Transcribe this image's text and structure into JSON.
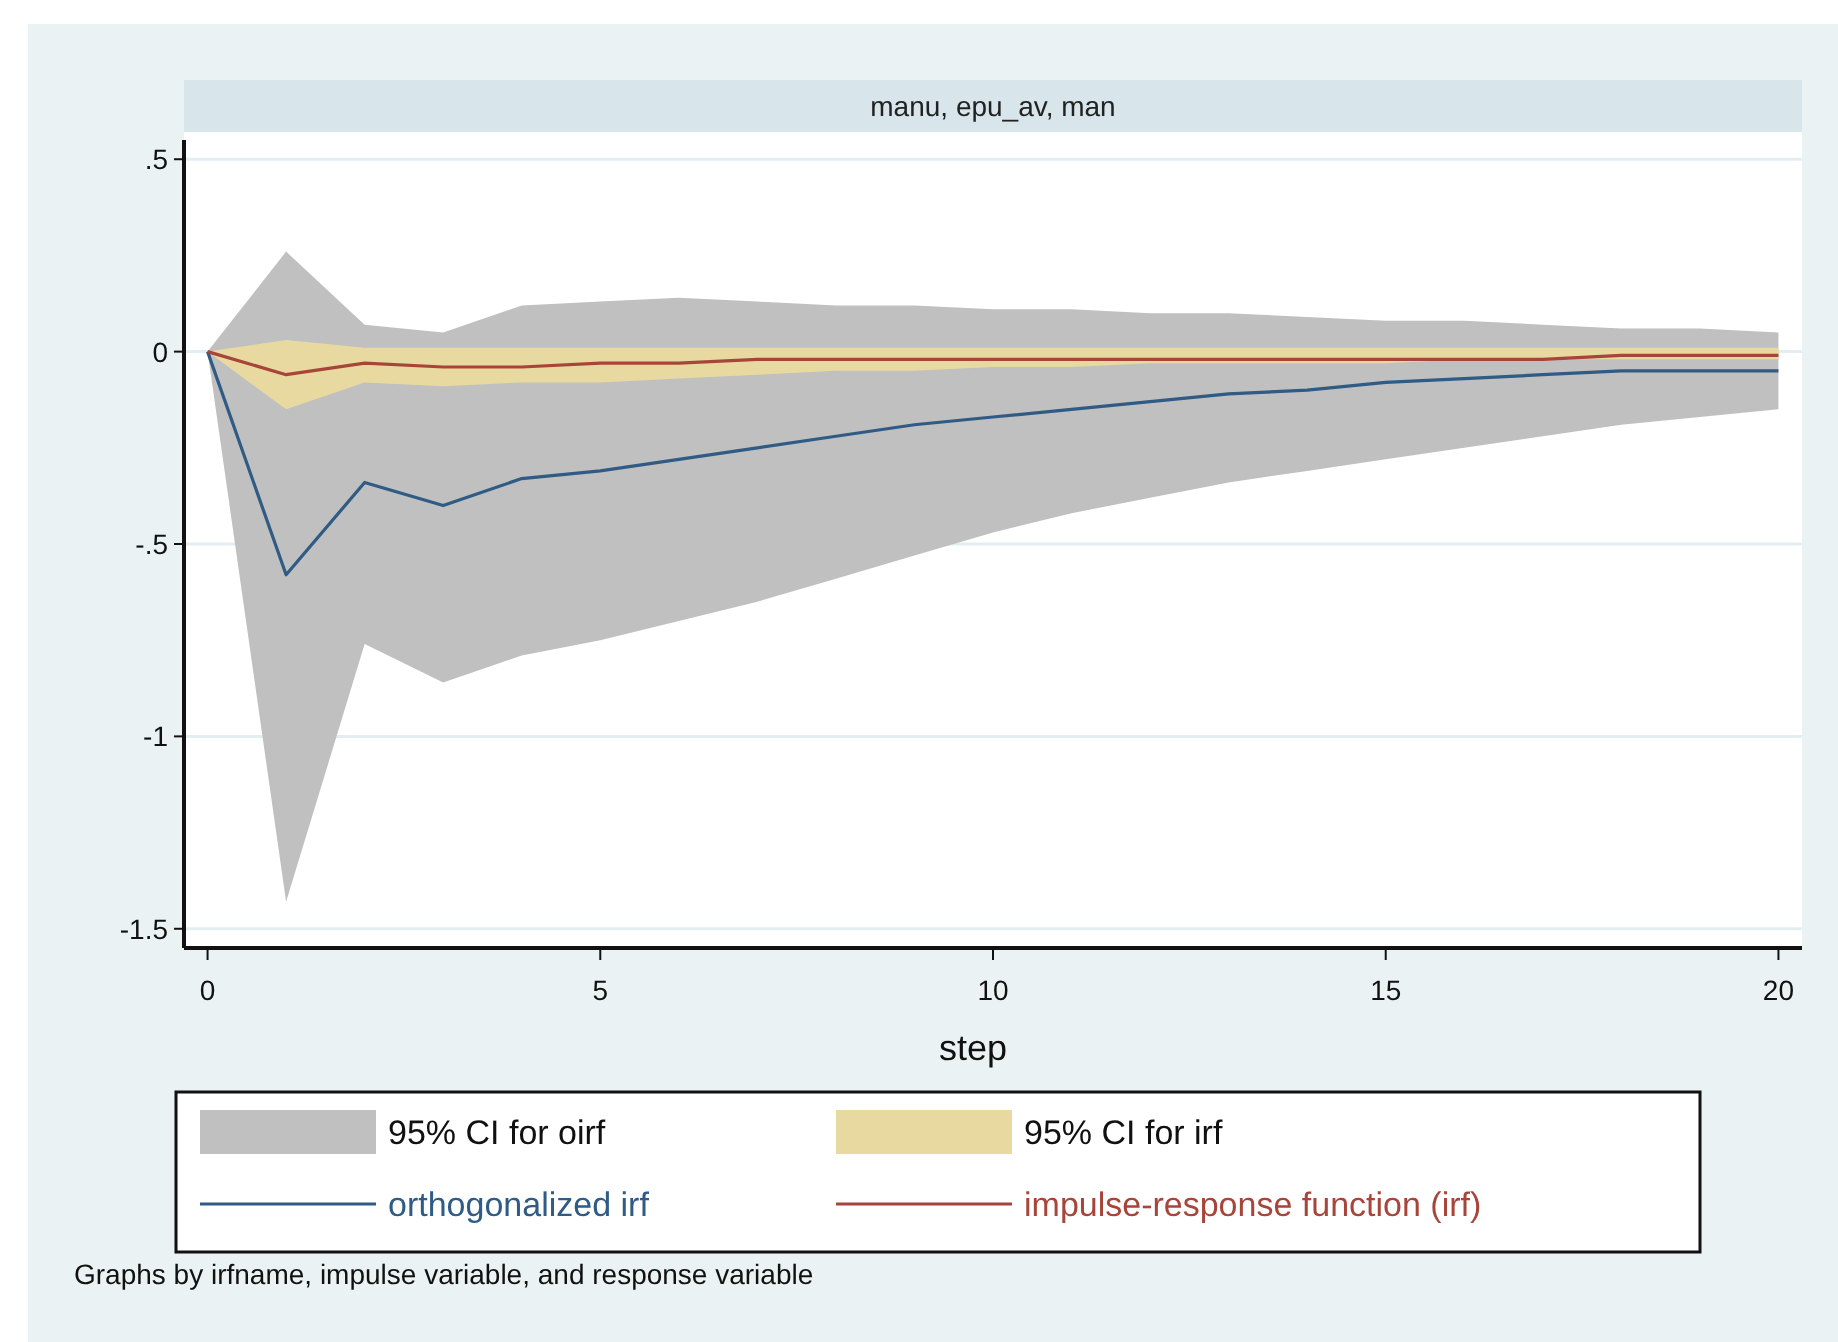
{
  "chart_data": {
    "type": "line",
    "title": "manu, epu_av, man",
    "xlabel": "step",
    "x": [
      0,
      1,
      2,
      3,
      4,
      5,
      6,
      7,
      8,
      9,
      10,
      11,
      12,
      13,
      14,
      15,
      16,
      17,
      18,
      19,
      20
    ],
    "series": [
      {
        "name": "orthogonalized irf",
        "color": "#2f5b84",
        "values": [
          0,
          -0.58,
          -0.34,
          -0.4,
          -0.33,
          -0.31,
          -0.28,
          -0.25,
          -0.22,
          -0.19,
          -0.17,
          -0.15,
          -0.13,
          -0.11,
          -0.1,
          -0.08,
          -0.07,
          -0.06,
          -0.05,
          -0.05,
          -0.05
        ],
        "lower": [
          0,
          -1.43,
          -0.76,
          -0.86,
          -0.79,
          -0.75,
          -0.7,
          -0.65,
          -0.59,
          -0.53,
          -0.47,
          -0.42,
          -0.38,
          -0.34,
          -0.31,
          -0.28,
          -0.25,
          -0.22,
          -0.19,
          -0.17,
          -0.15
        ],
        "upper": [
          0,
          0.26,
          0.07,
          0.05,
          0.12,
          0.13,
          0.14,
          0.13,
          0.12,
          0.12,
          0.11,
          0.11,
          0.1,
          0.1,
          0.09,
          0.08,
          0.08,
          0.07,
          0.06,
          0.06,
          0.05
        ]
      },
      {
        "name": "impulse-response function (irf)",
        "color": "#a8453a",
        "values": [
          0,
          -0.06,
          -0.03,
          -0.04,
          -0.04,
          -0.03,
          -0.03,
          -0.02,
          -0.02,
          -0.02,
          -0.02,
          -0.02,
          -0.02,
          -0.02,
          -0.02,
          -0.02,
          -0.02,
          -0.02,
          -0.01,
          -0.01,
          -0.01
        ],
        "lower": [
          0,
          -0.15,
          -0.08,
          -0.09,
          -0.08,
          -0.08,
          -0.07,
          -0.06,
          -0.05,
          -0.05,
          -0.04,
          -0.04,
          -0.03,
          -0.03,
          -0.03,
          -0.03,
          -0.02,
          -0.02,
          -0.02,
          -0.02,
          -0.02
        ],
        "upper": [
          0,
          0.03,
          0.01,
          0.01,
          0.01,
          0.01,
          0.01,
          0.01,
          0.01,
          0.01,
          0.01,
          0.01,
          0.01,
          0.01,
          0.01,
          0.01,
          0.01,
          0.01,
          0.01,
          0.01,
          0.01
        ]
      }
    ],
    "xlim": [
      -0.3,
      20.3
    ],
    "xticks": [
      0,
      5,
      10,
      15,
      20
    ],
    "ylim": [
      -1.55,
      0.55
    ],
    "yticks": [
      {
        "value": 0.5,
        "label": ".5"
      },
      {
        "value": 0,
        "label": "0"
      },
      {
        "value": -0.5,
        "label": "-.5"
      },
      {
        "value": -1,
        "label": "-1"
      },
      {
        "value": -1.5,
        "label": "-1.5"
      }
    ],
    "grid": "y",
    "legend": "bottom",
    "marker": "none",
    "line_style": "solid",
    "annotations": [
      "95% CI for oirf",
      "95% CI for irf",
      "Graphs by irfname, impulse variable, and response variable"
    ]
  }
}
